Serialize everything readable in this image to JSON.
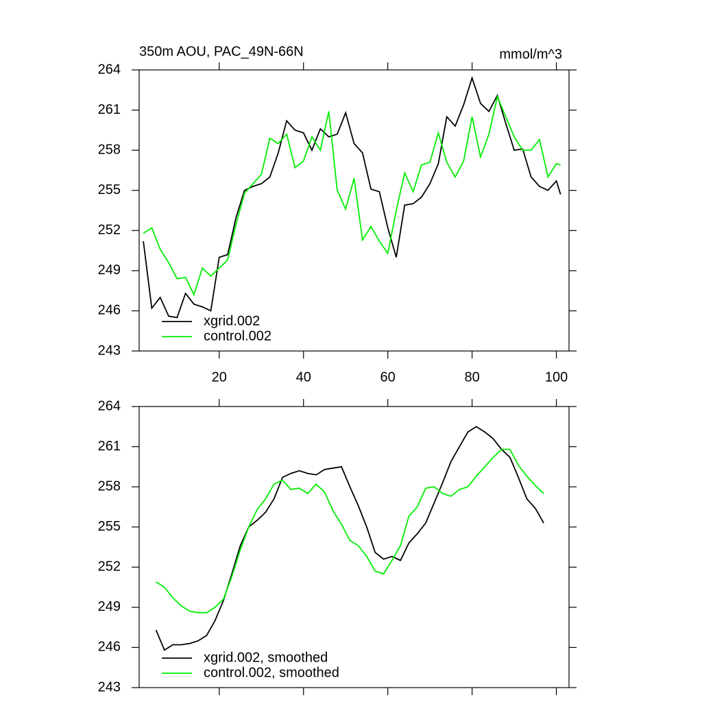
{
  "chart_data": [
    {
      "type": "line",
      "title": "350m AOU, PAC_49N-66N",
      "units": "mmol/m^3",
      "x": [
        2,
        4,
        6,
        8,
        10,
        12,
        14,
        16,
        18,
        20,
        22,
        24,
        26,
        28,
        30,
        32,
        34,
        36,
        38,
        40,
        42,
        44,
        46,
        48,
        50,
        52,
        54,
        56,
        58,
        60,
        62,
        64,
        66,
        68,
        70,
        72,
        74,
        76,
        78,
        80,
        82,
        84,
        86,
        88,
        90,
        92,
        94,
        96,
        98,
        100,
        101
      ],
      "series": [
        {
          "name": "xgrid.002",
          "color": "#000000",
          "values": [
            251.2,
            246.2,
            247.0,
            245.6,
            245.5,
            247.3,
            246.5,
            246.3,
            246.0,
            250.0,
            250.2,
            253.0,
            255.0,
            255.3,
            255.5,
            256.0,
            257.8,
            260.2,
            259.5,
            259.3,
            258.0,
            259.6,
            259.0,
            259.2,
            260.8,
            258.5,
            257.8,
            255.1,
            254.9,
            252.2,
            250.0,
            253.9,
            254.0,
            254.5,
            255.5,
            257.0,
            260.5,
            259.8,
            261.4,
            263.4,
            261.5,
            260.9,
            262.1,
            260.0,
            258.0,
            258.1,
            256.0,
            255.3,
            255.0,
            255.7,
            254.7
          ]
        },
        {
          "name": "control.002",
          "color": "#00ee00",
          "values": [
            251.8,
            252.2,
            250.6,
            249.6,
            248.4,
            248.5,
            247.2,
            249.2,
            248.6,
            249.2,
            249.8,
            252.5,
            254.8,
            255.5,
            256.2,
            258.9,
            258.5,
            259.2,
            256.7,
            257.2,
            259.0,
            258.0,
            260.9,
            255.0,
            253.6,
            255.9,
            251.3,
            252.3,
            251.2,
            250.3,
            253.5,
            256.3,
            254.9,
            256.9,
            257.1,
            259.3,
            257.1,
            256.0,
            257.2,
            260.5,
            257.5,
            259.2,
            262.0,
            260.5,
            259.0,
            258.0,
            258.0,
            258.8,
            256.0,
            257.0,
            256.9
          ]
        }
      ],
      "xlim": [
        1,
        103
      ],
      "ylim": [
        243,
        264
      ],
      "xticks": [
        20,
        40,
        60,
        80,
        100
      ],
      "xtick_labels": true,
      "yticks": [
        243,
        246,
        249,
        252,
        255,
        258,
        261,
        264
      ],
      "legend": "lower-left"
    },
    {
      "type": "line",
      "x": [
        5,
        7,
        9,
        11,
        13,
        15,
        17,
        19,
        21,
        23,
        25,
        27,
        29,
        31,
        33,
        35,
        37,
        39,
        41,
        43,
        45,
        47,
        49,
        51,
        53,
        55,
        57,
        59,
        61,
        63,
        65,
        67,
        69,
        71,
        73,
        75,
        77,
        79,
        81,
        83,
        85,
        87,
        89,
        91,
        93,
        95,
        97
      ],
      "series": [
        {
          "name": "xgrid.002, smoothed",
          "color": "#000000",
          "values": [
            247.3,
            245.8,
            246.2,
            246.2,
            246.3,
            246.5,
            246.9,
            248.0,
            249.5,
            251.5,
            253.6,
            255.0,
            255.5,
            256.1,
            257.1,
            258.7,
            259.0,
            259.2,
            259.0,
            258.9,
            259.3,
            259.4,
            259.5,
            258.0,
            256.6,
            255.0,
            253.1,
            252.6,
            252.8,
            252.5,
            253.8,
            254.5,
            255.3,
            256.8,
            258.3,
            259.9,
            261.0,
            262.1,
            262.5,
            262.1,
            261.6,
            260.8,
            260.2,
            258.7,
            257.1,
            256.4,
            255.3
          ]
        },
        {
          "name": "control.002, smoothed",
          "color": "#00ee00",
          "values": [
            250.9,
            250.5,
            249.7,
            249.1,
            248.7,
            248.6,
            248.6,
            249.0,
            249.6,
            251.3,
            253.3,
            255.0,
            256.3,
            257.1,
            258.2,
            258.5,
            257.8,
            257.9,
            257.5,
            258.2,
            257.6,
            256.2,
            255.2,
            254.0,
            253.6,
            252.8,
            251.7,
            251.5,
            252.5,
            253.6,
            255.8,
            256.5,
            257.9,
            258.0,
            257.5,
            257.3,
            257.8,
            258.0,
            258.8,
            259.5,
            260.2,
            260.8,
            260.8,
            259.6,
            258.8,
            258.1,
            257.5
          ]
        }
      ],
      "xlim": [
        1,
        103
      ],
      "ylim": [
        243,
        264
      ],
      "xticks": [
        20,
        40,
        60,
        80,
        100
      ],
      "xtick_labels": false,
      "yticks": [
        243,
        246,
        249,
        252,
        255,
        258,
        261,
        264
      ],
      "legend": "lower-left"
    }
  ]
}
